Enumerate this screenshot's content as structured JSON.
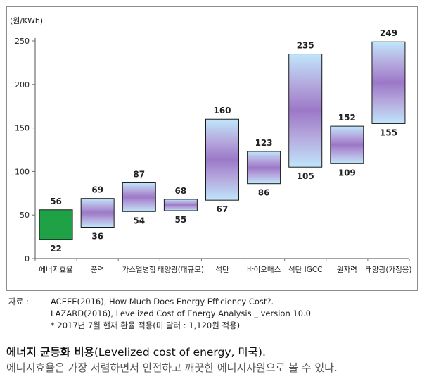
{
  "chart_data": {
    "type": "bar",
    "subtype": "floating-range",
    "ylabel": "(원/KWh)",
    "ylim": [
      0,
      250
    ],
    "yticks": [
      0,
      50,
      100,
      150,
      200,
      250
    ],
    "grid": false,
    "legend": "none",
    "categories": [
      "에너지효율",
      "풍력",
      "가스열병합",
      "태양광(대규모)",
      "석탄",
      "바이오매스",
      "석탄 IGCC",
      "원자력",
      "태양광(가정용)"
    ],
    "low": [
      22,
      36,
      54,
      55,
      67,
      86,
      105,
      109,
      155
    ],
    "high": [
      56,
      69,
      87,
      68,
      160,
      123,
      235,
      152,
      249
    ],
    "colors": {
      "highlight": "#1fa146",
      "range_center": "#9c78c8",
      "range_mid": "#b4a6dc",
      "range_edge": "#bfe6fb"
    }
  },
  "source": {
    "label": "자료 :",
    "lines": [
      "ACEEE(2016), How Much Does Energy Efficiency Cost?.",
      "LAZARD(2016), Levelized Cost of Energy Analysis _ version 10.0",
      "* 2017년 7월 현재 환율 적용(미 달러 : 1,120원 적용)"
    ]
  },
  "caption": {
    "title_ko": "에너지 균등화 비용",
    "title_en": "(Levelized cost of energy, 미국).",
    "description": "에너지효율은 가장 저렴하면서 안전하고 깨끗한 에너지자원으로 볼 수 있다."
  }
}
